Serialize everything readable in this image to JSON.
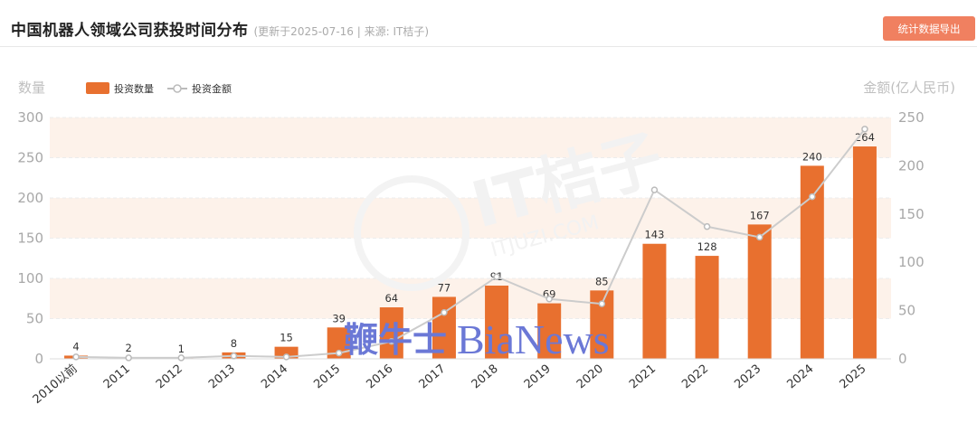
{
  "header": {
    "title": "中国机器人领域公司获投时间分布",
    "meta": "(更新于2025-07-16 | 来源: IT桔子)",
    "export_label": "统计数据导出"
  },
  "watermarks": {
    "center_text": "IT桔子",
    "center_sub": "ITJUZI.COM",
    "overlay_cn": "鞭牛士",
    "overlay_en": "BiaNews"
  },
  "colors": {
    "bar": "#e8702f",
    "line": "#cccccc",
    "band": "#fdf2ea",
    "button": "#f08060"
  },
  "chart_data": {
    "type": "bar",
    "categories": [
      "2010以前",
      "2011",
      "2012",
      "2013",
      "2014",
      "2015",
      "2016",
      "2017",
      "2018",
      "2019",
      "2020",
      "2021",
      "2022",
      "2023",
      "2024",
      "2025"
    ],
    "series": [
      {
        "name": "投资数量",
        "type": "bar",
        "axis": "left",
        "values": [
          4,
          2,
          1,
          8,
          15,
          39,
          64,
          77,
          91,
          69,
          85,
          143,
          128,
          167,
          240,
          264
        ]
      },
      {
        "name": "投资金额",
        "type": "line",
        "axis": "right",
        "values": [
          2,
          1,
          1,
          3,
          2,
          6,
          18,
          48,
          85,
          62,
          57,
          175,
          137,
          126,
          168,
          238
        ]
      }
    ],
    "ylabel": "数量",
    "y2label": "金额(亿人民币)",
    "ylim": [
      0,
      300
    ],
    "y2lim": [
      0,
      250
    ],
    "yticks": [
      0,
      50,
      100,
      150,
      200,
      250,
      300
    ],
    "y2ticks": [
      0,
      50,
      100,
      150,
      200,
      250
    ],
    "legend_position": "top-left",
    "grid": true
  }
}
